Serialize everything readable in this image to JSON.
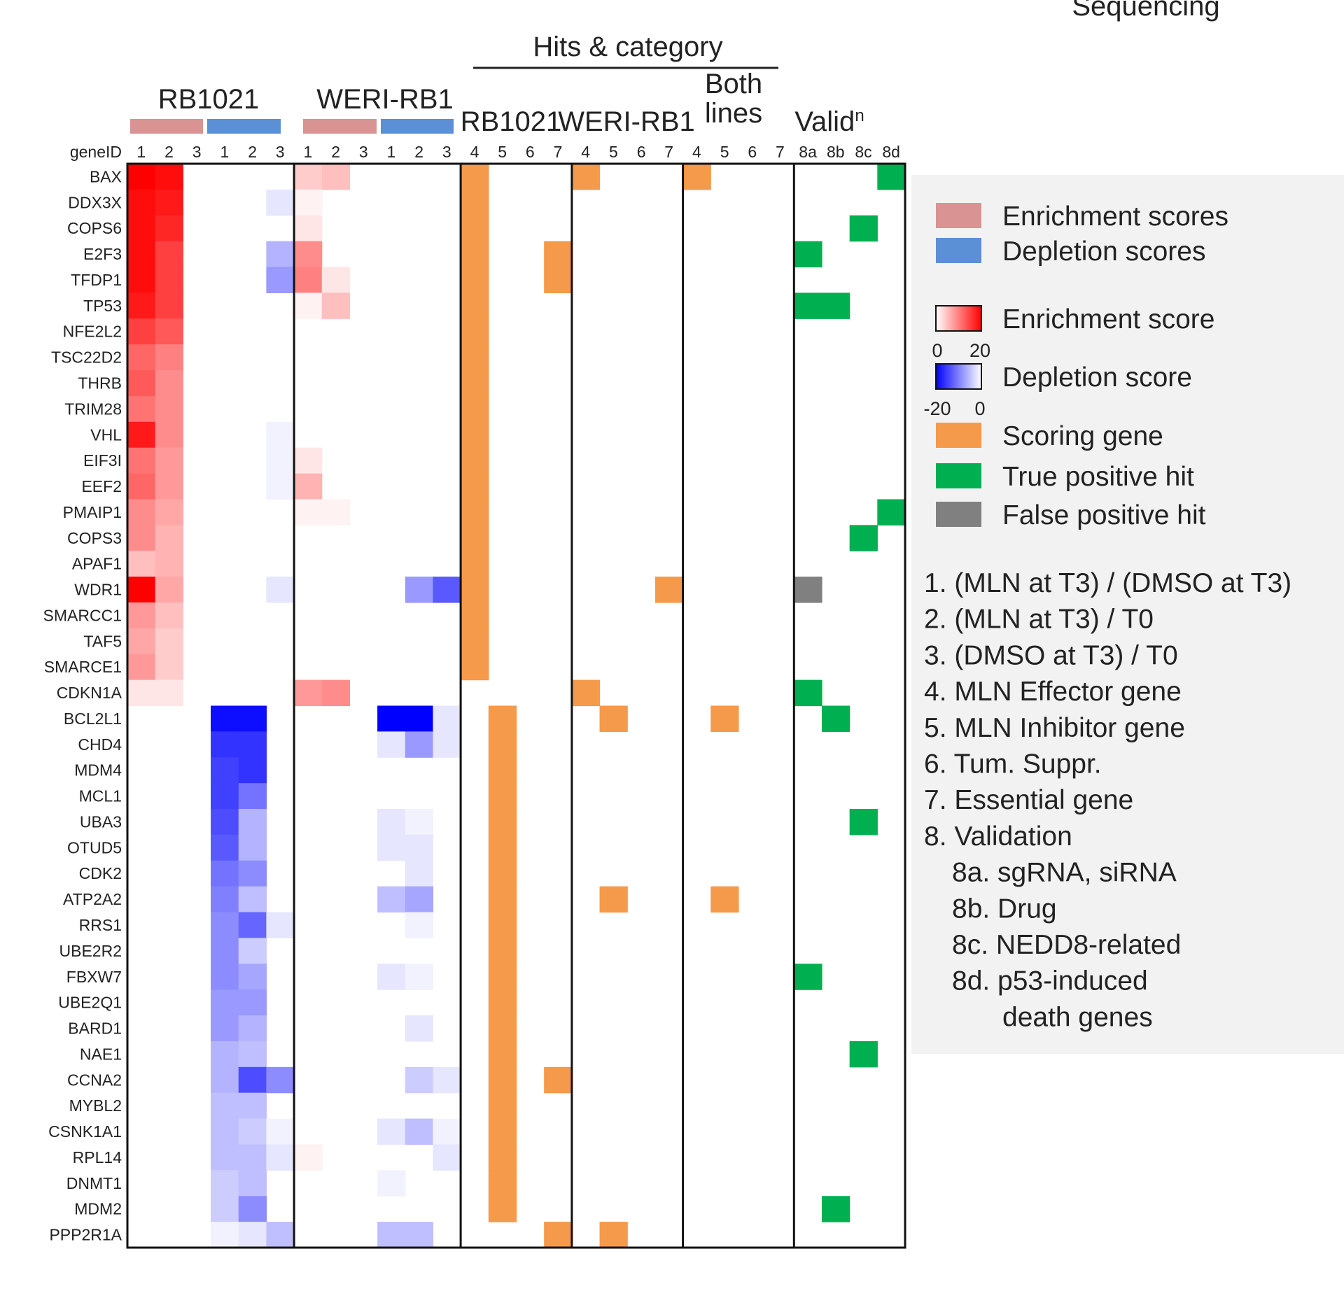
{
  "chart_data": {
    "type": "heatmap",
    "title": "Sequencing",
    "header": {
      "hits_title": "Hits & category",
      "groups": [
        "RB1021",
        "WERI-RB1"
      ],
      "hit_groups": [
        "RB1021",
        "WERI-RB1",
        "Both lines",
        "Validn"
      ],
      "both_line1": "Both",
      "both_line2": "lines",
      "valid_main": "Valid",
      "valid_sup": "n",
      "gene_id_label": "geneID",
      "col_labels": [
        "1",
        "2",
        "3",
        "1",
        "2",
        "3",
        "1",
        "2",
        "3",
        "1",
        "2",
        "3",
        "4",
        "5",
        "6",
        "7",
        "4",
        "5",
        "6",
        "7",
        "4",
        "5",
        "6",
        "7",
        "8a",
        "8b",
        "8c",
        "8d"
      ]
    },
    "genes": [
      "BAX",
      "DDX3X",
      "COPS6",
      "E2F3",
      "TFDP1",
      "TP53",
      "NFE2L2",
      "TSC22D2",
      "THRB",
      "TRIM28",
      "VHL",
      "EIF3I",
      "EEF2",
      "PMAIP1",
      "COPS3",
      "APAF1",
      "WDR1",
      "SMARCC1",
      "TAF5",
      "SMARCE1",
      "CDKN1A",
      "BCL2L1",
      "CHD4",
      "MDM4",
      "MCL1",
      "UBA3",
      "OTUD5",
      "CDK2",
      "ATP2A2",
      "RRS1",
      "UBE2R2",
      "FBXW7",
      "UBE2Q1",
      "BARD1",
      "NAE1",
      "CCNA2",
      "MYBL2",
      "CSNK1A1",
      "RPL14",
      "DNMT1",
      "MDM2",
      "PPP2R1A"
    ],
    "score_columns": [
      "RB1021 enrichment 1",
      "RB1021 enrichment 2",
      "RB1021 enrichment 3",
      "RB1021 depletion 1",
      "RB1021 depletion 2",
      "RB1021 depletion 3",
      "WERI-RB1 enrichment 1",
      "WERI-RB1 enrichment 2",
      "WERI-RB1 enrichment 3",
      "WERI-RB1 depletion 1",
      "WERI-RB1 depletion 2",
      "WERI-RB1 depletion 3"
    ],
    "scores": [
      [
        20,
        19,
        0,
        0,
        0,
        0,
        4,
        5,
        0,
        0,
        0,
        0
      ],
      [
        19,
        18,
        0,
        0,
        0,
        -2,
        1,
        0,
        0,
        0,
        0,
        0
      ],
      [
        19,
        17,
        0,
        0,
        0,
        0,
        2,
        0,
        0,
        0,
        0,
        0
      ],
      [
        19,
        15,
        0,
        0,
        0,
        -6,
        9,
        0,
        0,
        0,
        0,
        0
      ],
      [
        19,
        15,
        0,
        0,
        0,
        -8,
        10,
        2,
        0,
        0,
        0,
        0
      ],
      [
        18,
        15,
        0,
        0,
        0,
        0,
        1,
        5,
        0,
        0,
        0,
        0
      ],
      [
        15,
        13,
        0,
        0,
        0,
        0,
        0,
        0,
        0,
        0,
        0,
        0
      ],
      [
        12,
        10,
        0,
        0,
        0,
        0,
        0,
        0,
        0,
        0,
        0,
        0
      ],
      [
        13,
        9,
        0,
        0,
        0,
        0,
        0,
        0,
        0,
        0,
        0,
        0
      ],
      [
        11,
        9,
        0,
        0,
        0,
        0,
        0,
        0,
        0,
        0,
        0,
        0
      ],
      [
        18,
        9,
        0,
        0,
        0,
        -1,
        0,
        0,
        0,
        0,
        0,
        0
      ],
      [
        11,
        8,
        0,
        0,
        0,
        -1,
        2,
        0,
        0,
        0,
        0,
        0
      ],
      [
        12,
        8,
        0,
        0,
        0,
        -1,
        6,
        0,
        0,
        0,
        0,
        0
      ],
      [
        9,
        7,
        0,
        0,
        0,
        0,
        1,
        1,
        0,
        0,
        0,
        0
      ],
      [
        9,
        6,
        0,
        0,
        0,
        0,
        0,
        0,
        0,
        0,
        0,
        0
      ],
      [
        5,
        6,
        0,
        0,
        0,
        0,
        0,
        0,
        0,
        0,
        0,
        0
      ],
      [
        20,
        7,
        0,
        0,
        0,
        -2,
        0,
        0,
        0,
        0,
        -8,
        -13
      ],
      [
        8,
        5,
        0,
        0,
        0,
        0,
        0,
        0,
        0,
        0,
        0,
        0
      ],
      [
        7,
        4,
        0,
        0,
        0,
        0,
        0,
        0,
        0,
        0,
        0,
        0
      ],
      [
        8,
        4,
        0,
        0,
        0,
        0,
        0,
        0,
        0,
        0,
        0,
        0
      ],
      [
        2,
        2,
        0,
        0,
        0,
        0,
        8,
        9,
        0,
        0,
        0,
        0
      ],
      [
        0,
        0,
        0,
        -19,
        -19,
        0,
        0,
        0,
        0,
        -20,
        -20,
        -2
      ],
      [
        0,
        0,
        0,
        -16,
        -16,
        0,
        0,
        0,
        0,
        -2,
        -8,
        -2
      ],
      [
        0,
        0,
        0,
        -15,
        -16,
        0,
        0,
        0,
        0,
        0,
        0,
        0
      ],
      [
        0,
        0,
        0,
        -15,
        -11,
        0,
        0,
        0,
        0,
        0,
        0,
        0
      ],
      [
        0,
        0,
        0,
        -14,
        -6,
        0,
        0,
        0,
        0,
        -2,
        -1,
        0
      ],
      [
        0,
        0,
        0,
        -13,
        -6,
        0,
        0,
        0,
        0,
        -2,
        -2,
        0
      ],
      [
        0,
        0,
        0,
        -11,
        -9,
        0,
        0,
        0,
        0,
        0,
        -2,
        0
      ],
      [
        0,
        0,
        0,
        -10,
        -5,
        0,
        0,
        0,
        0,
        -5,
        -7,
        0
      ],
      [
        0,
        0,
        0,
        -9,
        -12,
        -2,
        0,
        0,
        0,
        0,
        -1,
        0
      ],
      [
        0,
        0,
        0,
        -9,
        -4,
        0,
        0,
        0,
        0,
        0,
        0,
        0
      ],
      [
        0,
        0,
        0,
        -9,
        -7,
        0,
        0,
        0,
        0,
        -2,
        -1,
        0
      ],
      [
        0,
        0,
        0,
        -8,
        -8,
        0,
        0,
        0,
        0,
        0,
        0,
        0
      ],
      [
        0,
        0,
        0,
        -8,
        -6,
        0,
        0,
        0,
        0,
        0,
        -2,
        0
      ],
      [
        0,
        0,
        0,
        -6,
        -5,
        0,
        0,
        0,
        0,
        0,
        0,
        0
      ],
      [
        0,
        0,
        0,
        -6,
        -14,
        -9,
        0,
        0,
        0,
        0,
        -4,
        -2
      ],
      [
        0,
        0,
        0,
        -5,
        -5,
        0,
        0,
        0,
        0,
        0,
        0,
        0
      ],
      [
        0,
        0,
        0,
        -5,
        -4,
        -1,
        0,
        0,
        0,
        -2,
        -5,
        -1
      ],
      [
        0,
        0,
        0,
        -5,
        -5,
        -2,
        1,
        0,
        0,
        0,
        0,
        -2
      ],
      [
        0,
        0,
        0,
        -4,
        -5,
        0,
        0,
        0,
        0,
        -1,
        0,
        0
      ],
      [
        0,
        0,
        0,
        -4,
        -9,
        0,
        0,
        0,
        0,
        0,
        0,
        0
      ],
      [
        0,
        0,
        0,
        -1,
        -2,
        -5,
        0,
        0,
        0,
        -5,
        -5,
        0
      ]
    ],
    "score_range": {
      "enrichment": [
        0,
        20
      ],
      "depletion": [
        -20,
        0
      ]
    },
    "hit_columns": [
      "RB1021 4",
      "RB1021 5",
      "RB1021 6",
      "RB1021 7",
      "WERI-RB1 4",
      "WERI-RB1 5",
      "WERI-RB1 6",
      "WERI-RB1 7",
      "Both 4",
      "Both 5",
      "Both 6",
      "Both 7",
      "8a",
      "8b",
      "8c",
      "8d"
    ],
    "hits": [
      "O...O...O......G",
      "O...............",
      "O.............G.",
      "O..O........G...",
      "O..O............",
      "O...........GG..",
      "O...............",
      "O...............",
      "O...............",
      "O...............",
      "O...............",
      "O...............",
      "O...............",
      "O..............G",
      "O.............G.",
      "O...............",
      "O......O....X...",
      "O...............",
      "O...............",
      "O...............",
      "....O.......G...",
      ".O...O...O...G..",
      ".O..............",
      ".O..............",
      ".O..............",
      ".O............G.",
      ".O..............",
      ".O..............",
      ".O...O...O......",
      ".O..............",
      ".O..............",
      ".O..........G...",
      ".O..............",
      ".O..............",
      ".O............G.",
      ".O.O............",
      ".O..............",
      ".O..............",
      ".O..............",
      ".O..............",
      ".O...........G..",
      "...O.O.........."
    ],
    "hit_codes": {
      "O": "Scoring gene",
      "G": "True positive hit",
      "X": "False positive hit"
    },
    "colors": {
      "enrichment_bar": "#d99393",
      "depletion_bar": "#5b8fd6",
      "red_max": "#ff0000",
      "blue_max": "#0000ff",
      "scoring": "#f5994a",
      "true_pos": "#00b050",
      "false_pos": "#808080",
      "legend_bg": "#f2f2f2"
    },
    "legend": {
      "items": [
        {
          "label": "Enrichment scores",
          "kind": "enrich_bar"
        },
        {
          "label": "Depletion scores",
          "kind": "deplete_bar"
        },
        {
          "label": "Enrichment score",
          "kind": "enrich_grad",
          "ticks": [
            "0",
            "20"
          ]
        },
        {
          "label": "Depletion score",
          "kind": "deplete_grad",
          "ticks": [
            "-20",
            "0"
          ]
        },
        {
          "label": "Scoring gene",
          "kind": "scoring"
        },
        {
          "label": "True positive hit",
          "kind": "true_pos"
        },
        {
          "label": "False positive hit",
          "kind": "false_pos"
        }
      ],
      "notes": [
        "1. (MLN at T3) / (DMSO at T3)",
        "2. (MLN at T3) / T0",
        "3. (DMSO at T3) / T0",
        "4. MLN Effector gene",
        "5. MLN Inhibitor gene",
        "6. Tum. Suppr.",
        "7. Essential gene",
        "8. Validation",
        "8a. sgRNA, siRNA",
        "8b. Drug",
        "8c. NEDD8-related",
        "8d. p53-induced",
        "death genes"
      ]
    }
  }
}
